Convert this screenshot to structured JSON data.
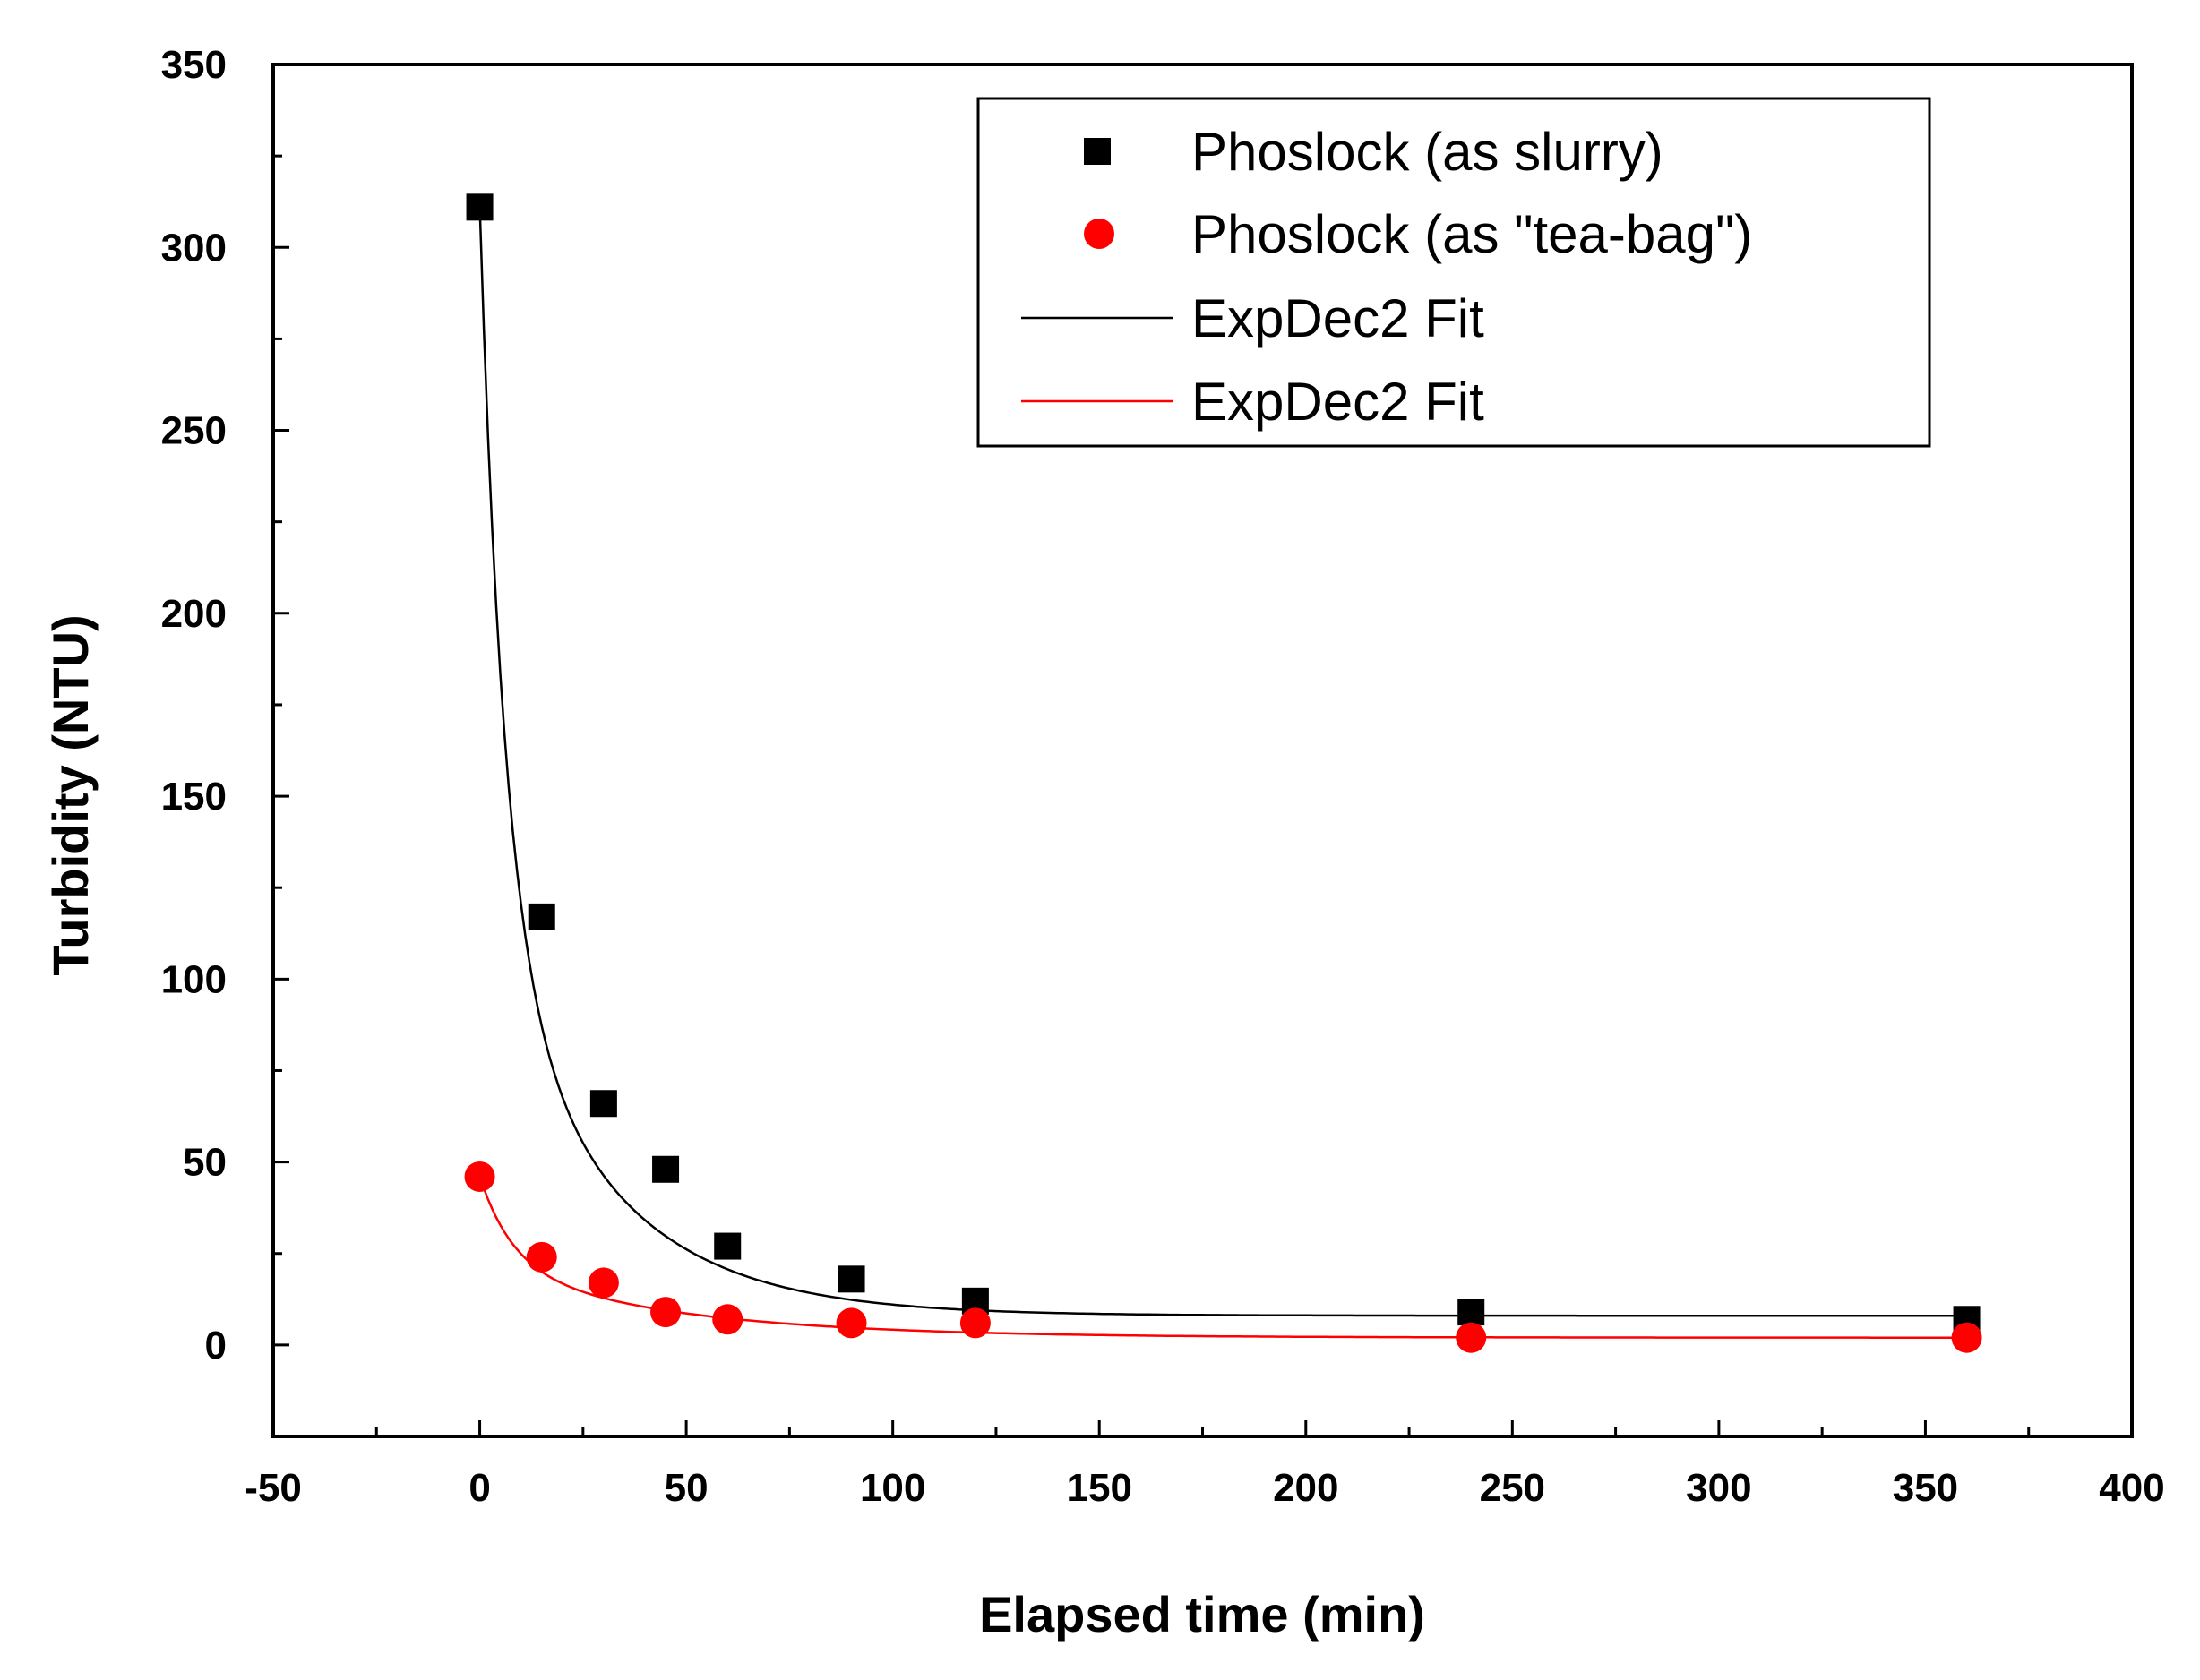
{
  "chart_data": {
    "type": "scatter",
    "title": "",
    "xlabel": "Elapsed time (min)",
    "ylabel": "Turbidity (NTU)",
    "xlim": [
      -50,
      400
    ],
    "ylim": [
      -25,
      350
    ],
    "xticks": [
      -50,
      0,
      50,
      100,
      150,
      200,
      250,
      300,
      350,
      400
    ],
    "yticks": [
      0,
      50,
      100,
      150,
      200,
      250,
      300,
      350
    ],
    "xtick_labels": [
      "-50",
      "0",
      "50",
      "100",
      "150",
      "200",
      "250",
      "300",
      "350",
      "400"
    ],
    "ytick_labels": [
      "0",
      "50",
      "100",
      "150",
      "200",
      "250",
      "300",
      "350"
    ],
    "grid": false,
    "legend_position": "top-right",
    "series": [
      {
        "name": "Phoslock (as slurry)",
        "marker": "square",
        "color": "#000000",
        "x": [
          0,
          15,
          30,
          45,
          60,
          90,
          120,
          240,
          360
        ],
        "y": [
          311,
          117,
          66,
          48,
          27,
          18,
          12,
          9,
          7
        ]
      },
      {
        "name": "Phoslock (as \"tea-bag\")",
        "marker": "circle",
        "color": "#ff0000",
        "x": [
          0,
          15,
          30,
          45,
          60,
          90,
          120,
          240,
          360
        ],
        "y": [
          46,
          24,
          17,
          9,
          7,
          6,
          6,
          2,
          2
        ]
      },
      {
        "name": "ExpDec2 Fit",
        "type": "line",
        "color": "#000000",
        "fit": {
          "y0": 8,
          "A1": 195,
          "t1": 6,
          "A2": 108,
          "t2": 28
        }
      },
      {
        "name": "ExpDec2 Fit",
        "type": "line",
        "color": "#ff0000",
        "fit": {
          "y0": 2,
          "A1": 24,
          "t1": 8,
          "A2": 20,
          "t2": 45
        }
      }
    ]
  }
}
